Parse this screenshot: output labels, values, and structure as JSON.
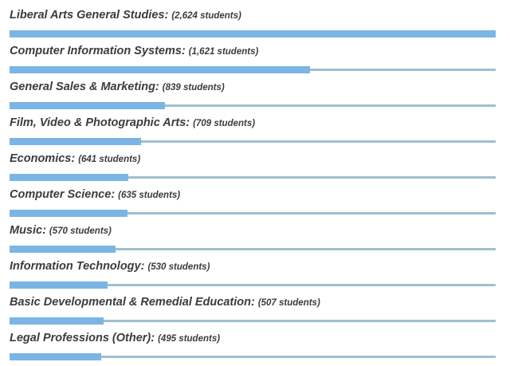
{
  "chart_data": {
    "type": "bar",
    "orientation": "horizontal",
    "title": "",
    "xlabel": "",
    "ylabel": "",
    "unit": "students",
    "xlim": [
      0,
      2624
    ],
    "grid": false,
    "bar_color": "#7ab5e6",
    "track_color": "#9fbfcf",
    "text_color": "#3c3c3c",
    "categories": [
      "Liberal Arts General Studies:",
      "Computer Information Systems:",
      "General Sales & Marketing:",
      "Film, Video & Photographic Arts:",
      "Economics:",
      "Computer Science:",
      "Music:",
      "Information Technology:",
      "Basic Developmental & Remedial Education:",
      "Legal Professions (Other):"
    ],
    "values": [
      2624,
      1621,
      839,
      709,
      641,
      635,
      570,
      530,
      507,
      495
    ],
    "value_labels": [
      "(2,624 students)",
      "(1,621 students)",
      "(839 students)",
      "(709 students)",
      "(641 students)",
      "(635 students)",
      "(570 students)",
      "(530 students)",
      "(507 students)",
      "(495 students)"
    ]
  }
}
